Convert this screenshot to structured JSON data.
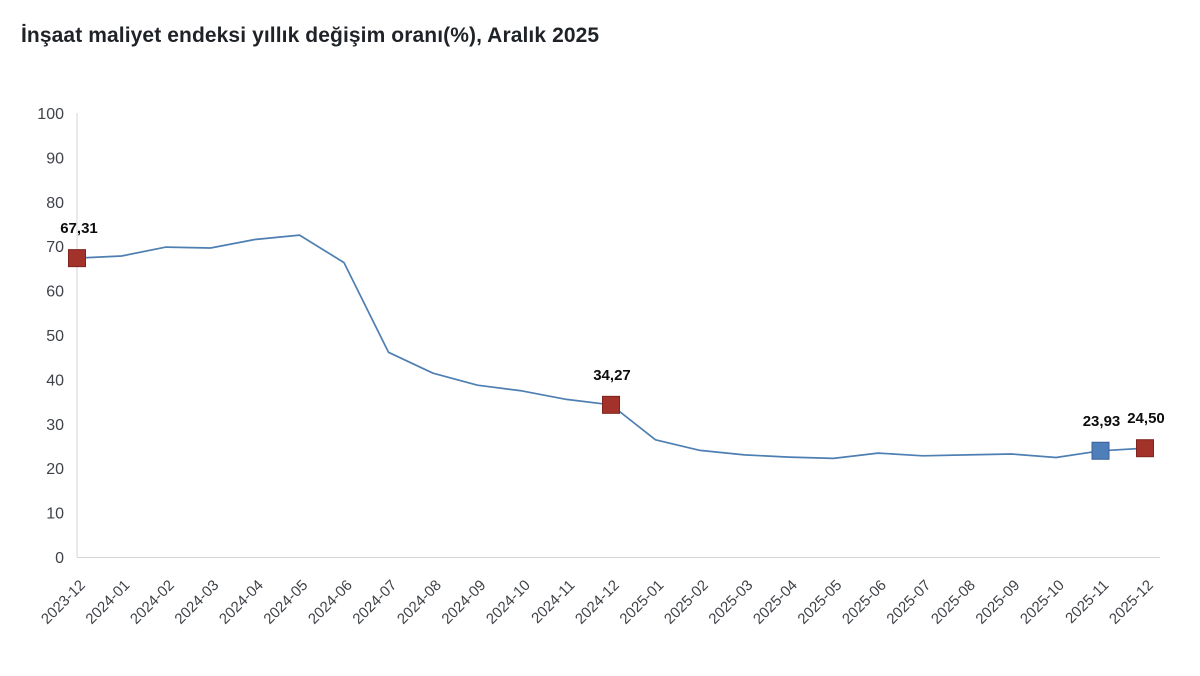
{
  "title": "İnşaat maliyet endeksi yıllık değişim oranı(%), Aralık 2025",
  "chart_data": {
    "type": "line",
    "title": "İnşaat maliyet endeksi yıllık değişim oranı(%), Aralık 2025",
    "xlabel": "",
    "ylabel": "",
    "ylim": [
      0,
      100
    ],
    "yticks": [
      0,
      10,
      20,
      30,
      40,
      50,
      60,
      70,
      80,
      90,
      100
    ],
    "grid": false,
    "legend": "none",
    "line_color": "#4e7fb2",
    "axis_color": "#d6d6d6",
    "categories": [
      "2023-12",
      "2024-01",
      "2024-02",
      "2024-03",
      "2024-04",
      "2024-05",
      "2024-06",
      "2024-07",
      "2024-08",
      "2024-09",
      "2024-10",
      "2024-11",
      "2024-12",
      "2025-01",
      "2025-02",
      "2025-03",
      "2025-04",
      "2025-05",
      "2025-06",
      "2025-07",
      "2025-08",
      "2025-09",
      "2025-10",
      "2025-11",
      "2025-12"
    ],
    "values": [
      67.31,
      67.8,
      69.8,
      69.6,
      71.5,
      72.5,
      66.3,
      46.1,
      41.4,
      38.7,
      37.4,
      35.5,
      34.27,
      26.4,
      24.0,
      23.0,
      22.5,
      22.2,
      23.4,
      22.8,
      23.0,
      23.2,
      22.4,
      23.93,
      24.5
    ],
    "markers": [
      {
        "index": 0,
        "label": "67,31",
        "fill": "#a3322a",
        "stroke": "#7e241d",
        "label_dx": 2
      },
      {
        "index": 12,
        "label": "34,27",
        "fill": "#a3322a",
        "stroke": "#7e241d",
        "label_dx": 1
      },
      {
        "index": 23,
        "label": "23,93",
        "fill": "#4e7fba",
        "stroke": "#38619b",
        "label_dx": 1
      },
      {
        "index": 24,
        "label": "24,50",
        "fill": "#a3322a",
        "stroke": "#7e241d",
        "label_dx": 1
      }
    ]
  }
}
